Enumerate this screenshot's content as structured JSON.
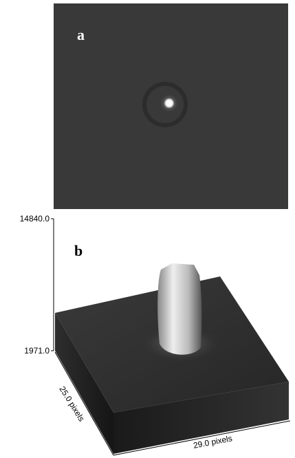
{
  "panel_a": {
    "label": "a"
  },
  "panel_b": {
    "label": "b",
    "z_max": "14840.0",
    "z_min": "1971.0",
    "y_extent": "25.0 pixels",
    "x_extent": "29.0 pixels"
  }
}
